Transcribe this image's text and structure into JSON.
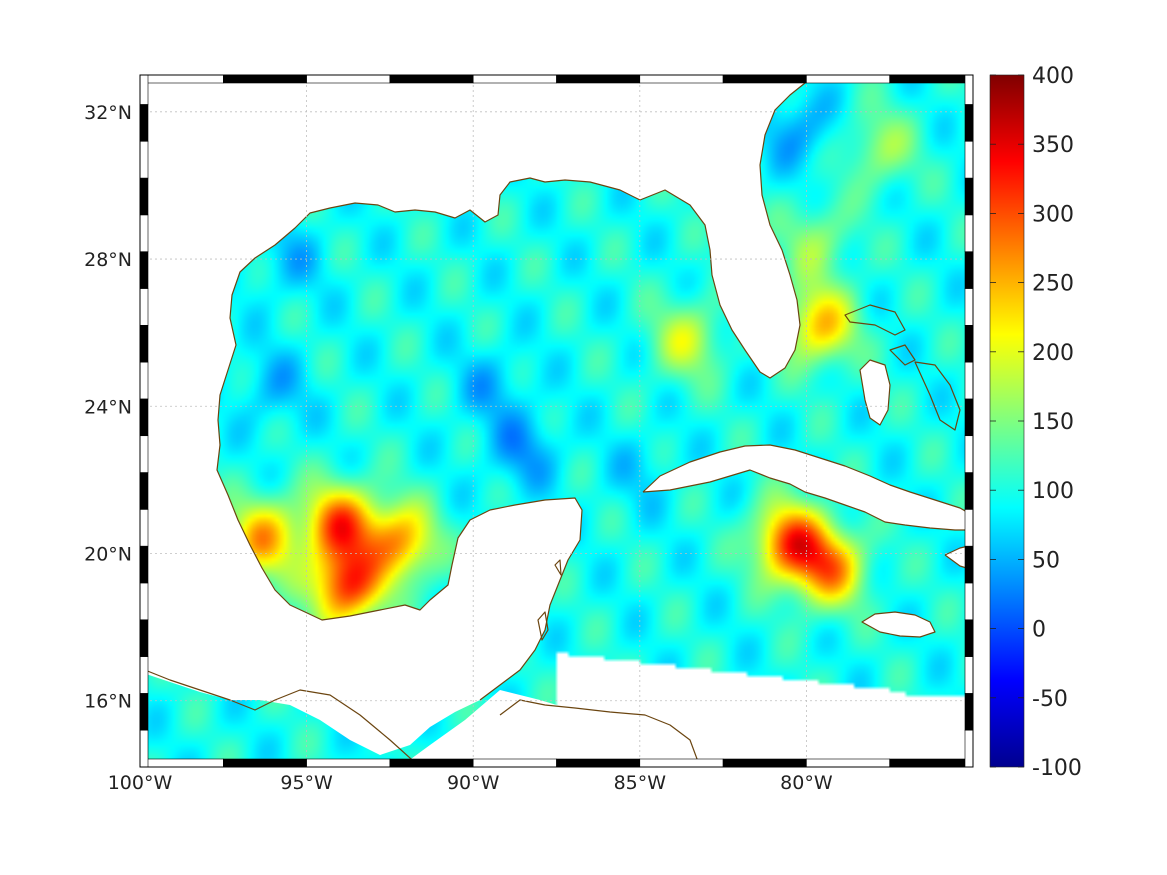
{
  "map": {
    "lon_min": -100,
    "lon_max": -75,
    "lat_min": 14.2,
    "lat_max": 33,
    "x_ticks": [
      {
        "lon": -100,
        "label": "100°W"
      },
      {
        "lon": -95,
        "label": "95°W"
      },
      {
        "lon": -90,
        "label": "90°W"
      },
      {
        "lon": -85,
        "label": "85°W"
      },
      {
        "lon": -80,
        "label": "80°W"
      }
    ],
    "y_ticks": [
      {
        "lat": 32,
        "label": "32°N"
      },
      {
        "lat": 28,
        "label": "28°N"
      },
      {
        "lat": 24,
        "label": "24°N"
      },
      {
        "lat": 20,
        "label": "20°N"
      },
      {
        "lat": 16,
        "label": "16°N"
      }
    ],
    "grid": true,
    "coastline_color": "#6b4510"
  },
  "colorbar": {
    "colormap": "jet",
    "min": -100,
    "max": 400,
    "placement": "right",
    "ticks": [
      {
        "value": 400,
        "label": "400"
      },
      {
        "value": 350,
        "label": "350"
      },
      {
        "value": 300,
        "label": "300"
      },
      {
        "value": 250,
        "label": "250"
      },
      {
        "value": 200,
        "label": "200"
      },
      {
        "value": 150,
        "label": "150"
      },
      {
        "value": 100,
        "label": "100"
      },
      {
        "value": 50,
        "label": "50"
      },
      {
        "value": 0,
        "label": "0"
      },
      {
        "value": -50,
        "label": "-50"
      },
      {
        "value": -100,
        "label": "-100"
      }
    ]
  },
  "field": {
    "base_value": 95,
    "hotspots": [
      {
        "name": "bay-of-campeche",
        "lon": -94,
        "lat": 20.8,
        "value": 290
      },
      {
        "name": "campeche-south",
        "lon": -93.8,
        "lat": 19.1,
        "value": 310
      },
      {
        "name": "campeche-east",
        "lon": -92.2,
        "lat": 20.3,
        "value": 260
      },
      {
        "name": "west-mexico-coast",
        "lon": -96.3,
        "lat": 20.4,
        "value": 250
      },
      {
        "name": "south-of-cuba",
        "lon": -80.5,
        "lat": 20.3,
        "value": 300
      },
      {
        "name": "south-of-cuba-tail",
        "lon": -79.3,
        "lat": 19.6,
        "value": 260
      },
      {
        "name": "florida-west-shelf",
        "lon": -83.6,
        "lat": 25.8,
        "value": 185
      },
      {
        "name": "florida-straits-east",
        "lon": -79.6,
        "lat": 26.2,
        "value": 240
      },
      {
        "name": "atlantic-north",
        "lon": -77.8,
        "lat": 31,
        "value": 165
      },
      {
        "name": "atlantic-band",
        "lon": -79.7,
        "lat": 28.5,
        "value": 160
      }
    ],
    "coldspots": [
      {
        "name": "central-gulf-south",
        "lon": -88.5,
        "lat": 22.8,
        "value": 40
      },
      {
        "name": "central-gulf",
        "lon": -89.5,
        "lat": 24.5,
        "value": 55
      },
      {
        "name": "western-gulf",
        "lon": -96,
        "lat": 24.5,
        "value": 55
      },
      {
        "name": "northwest-gulf",
        "lon": -95.5,
        "lat": 28,
        "value": 60
      },
      {
        "name": "atlantic-shelf",
        "lon": -80.2,
        "lat": 31.5,
        "value": 40
      },
      {
        "name": "yucatan-channel",
        "lon": -85,
        "lat": 22.2,
        "value": 70
      }
    ]
  }
}
